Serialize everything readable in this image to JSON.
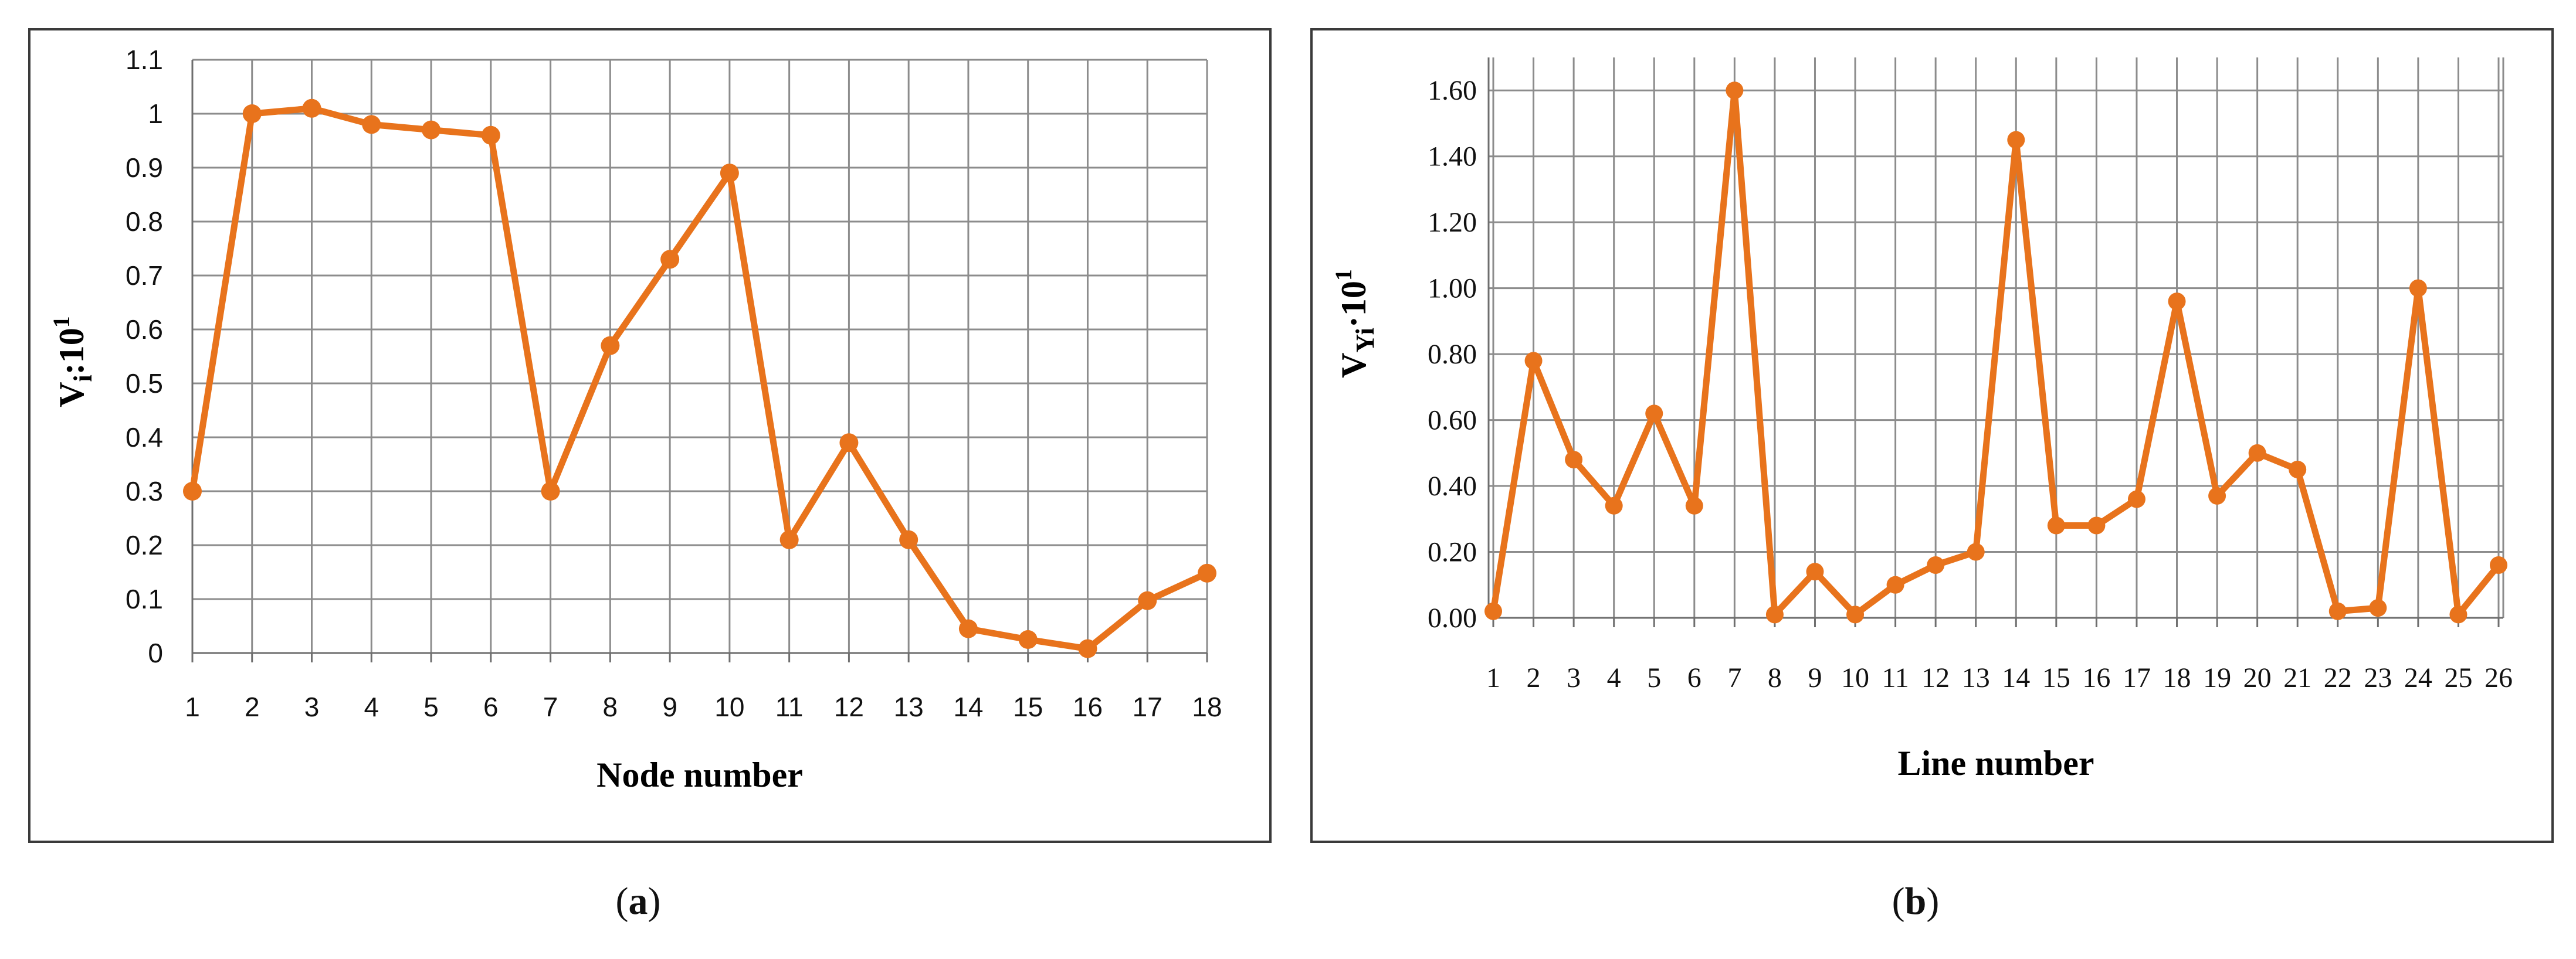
{
  "colors": {
    "series": "#E8731C",
    "grid": "#8c8c8c",
    "frame": "#3a3a3a"
  },
  "captions": {
    "a_letter": "a",
    "b_letter": "b"
  },
  "chart_data": [
    {
      "id": "a",
      "type": "line",
      "title": "",
      "xlabel": "Node number",
      "ylabel_main": "V",
      "ylabel_sub": "i",
      "ylabel_tail": ":10",
      "ylabel_sup": "1",
      "categories": [
        "1",
        "2",
        "3",
        "4",
        "5",
        "6",
        "7",
        "8",
        "9",
        "10",
        "11",
        "12",
        "13",
        "14",
        "15",
        "16",
        "17",
        "18"
      ],
      "values": [
        0.3,
        1.0,
        1.01,
        0.98,
        0.97,
        0.96,
        0.3,
        0.57,
        0.73,
        0.89,
        0.21,
        0.39,
        0.21,
        0.045,
        0.025,
        0.008,
        0.097,
        0.148
      ],
      "ylim": [
        0,
        1.1
      ],
      "yticks": [
        0,
        0.1,
        0.2,
        0.3,
        0.4,
        0.5,
        0.6,
        0.7,
        0.8,
        0.9,
        1,
        1.1
      ],
      "ytick_labels": [
        "0",
        "0.1",
        "0.2",
        "0.3",
        "0.4",
        "0.5",
        "0.6",
        "0.7",
        "0.8",
        "0.9",
        "1",
        "1.1"
      ],
      "grid": true,
      "marker": "circle"
    },
    {
      "id": "b",
      "type": "line",
      "title": "",
      "xlabel": "Line number",
      "ylabel_main": "V",
      "ylabel_sub": "Yi",
      "ylabel_tail": "·10",
      "ylabel_sup": "1",
      "categories": [
        "1",
        "2",
        "3",
        "4",
        "5",
        "6",
        "7",
        "8",
        "9",
        "10",
        "11",
        "12",
        "13",
        "14",
        "15",
        "16",
        "17",
        "18",
        "19",
        "20",
        "21",
        "22",
        "23",
        "24",
        "25",
        "26"
      ],
      "values": [
        0.02,
        0.78,
        0.48,
        0.34,
        0.62,
        0.34,
        1.6,
        0.01,
        0.14,
        0.01,
        0.1,
        0.16,
        0.2,
        1.45,
        0.28,
        0.28,
        0.36,
        0.96,
        0.37,
        0.5,
        0.45,
        0.02,
        0.03,
        1.0,
        0.01,
        0.16
      ],
      "ylim": [
        0,
        1.7
      ],
      "yticks": [
        0,
        0.2,
        0.4,
        0.6,
        0.8,
        1.0,
        1.2,
        1.4,
        1.6
      ],
      "ytick_labels": [
        "0.00",
        "0.20",
        "0.40",
        "0.60",
        "0.80",
        "1.00",
        "1.20",
        "1.40",
        "1.60"
      ],
      "grid": true,
      "marker": "circle"
    }
  ]
}
